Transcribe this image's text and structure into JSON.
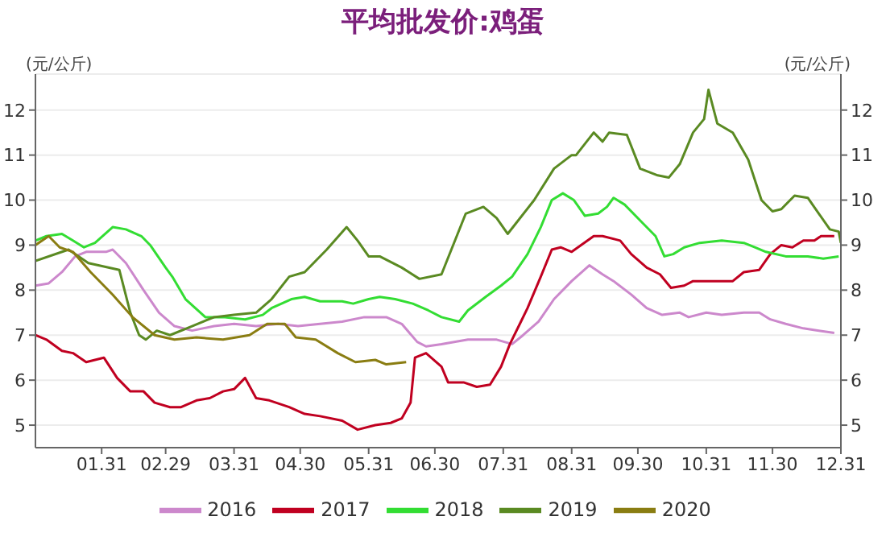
{
  "chart_data": {
    "type": "line",
    "title": "平均批发价:鸡蛋",
    "ylabel": "(元/公斤)",
    "y2label": "(元/公斤)",
    "xlim": [
      "--01-01",
      "--12-31"
    ],
    "xticks": [
      {
        "value": "--01-31",
        "label": "01.31"
      },
      {
        "value": "--02-29",
        "label": "02.29"
      },
      {
        "value": "--03-31",
        "label": "03.31"
      },
      {
        "value": "--04-30",
        "label": "04.30"
      },
      {
        "value": "--05-31",
        "label": "05.31"
      },
      {
        "value": "--06-30",
        "label": "06.30"
      },
      {
        "value": "--07-31",
        "label": "07.31"
      },
      {
        "value": "--08-31",
        "label": "08.31"
      },
      {
        "value": "--09-30",
        "label": "09.30"
      },
      {
        "value": "--10-31",
        "label": "10.31"
      },
      {
        "value": "--11-30",
        "label": "11.30"
      },
      {
        "value": "--12-31",
        "label": "12.31"
      }
    ],
    "ylim": [
      4.5,
      12.8
    ],
    "yticks": [
      5,
      6,
      7,
      8,
      9,
      10,
      11,
      12
    ],
    "y2lim": [
      4.5,
      12.8
    ],
    "y2ticks": [
      5,
      6,
      7,
      8,
      9,
      10,
      11,
      12
    ],
    "grid": "y",
    "legend": "bottom",
    "series": [
      {
        "name": "2016",
        "color": "#cc88cc",
        "x": [
          "--01-01",
          "--01-07",
          "--01-13",
          "--01-19",
          "--01-24",
          "--02-02",
          "--02-05",
          "--02-11",
          "--02-19",
          "--02-26",
          "--03-04",
          "--03-12",
          "--03-22",
          "--03-31",
          "--04-10",
          "--04-20",
          "--04-29",
          "--05-09",
          "--05-19",
          "--05-29",
          "--06-08",
          "--06-15",
          "--06-22",
          "--06-26",
          "--07-03",
          "--07-15",
          "--07-28",
          "--08-04",
          "--08-09",
          "--08-16",
          "--08-23",
          "--08-31",
          "--09-08",
          "--09-14",
          "--09-19",
          "--09-27",
          "--10-04",
          "--10-11",
          "--10-19",
          "--10-23",
          "--10-31",
          "--11-07",
          "--11-17",
          "--11-24",
          "--11-29",
          "--12-06",
          "--12-14",
          "--12-21",
          "--12-28"
        ],
        "values": [
          8.1,
          8.15,
          8.4,
          8.75,
          8.85,
          8.85,
          8.9,
          8.6,
          8.0,
          7.5,
          7.2,
          7.1,
          7.2,
          7.25,
          7.2,
          7.25,
          7.2,
          7.25,
          7.3,
          7.4,
          7.4,
          7.25,
          6.85,
          6.75,
          6.8,
          6.9,
          6.9,
          6.8,
          7.0,
          7.3,
          7.8,
          8.2,
          8.55,
          8.35,
          8.2,
          7.9,
          7.6,
          7.45,
          7.5,
          7.4,
          7.5,
          7.45,
          7.5,
          7.5,
          7.35,
          7.25,
          7.15,
          7.1,
          7.05
        ]
      },
      {
        "name": "2017",
        "color": "#c00020",
        "x": [
          "--01-01",
          "--01-06",
          "--01-13",
          "--01-18",
          "--01-24",
          "--02-01",
          "--02-07",
          "--02-13",
          "--02-19",
          "--02-24",
          "--03-02",
          "--03-07",
          "--03-14",
          "--03-20",
          "--03-26",
          "--03-31",
          "--04-05",
          "--04-10",
          "--04-16",
          "--04-25",
          "--05-02",
          "--05-09",
          "--05-19",
          "--05-26",
          "--06-03",
          "--06-10",
          "--06-15",
          "--06-19",
          "--06-21",
          "--06-26",
          "--07-03",
          "--07-06",
          "--07-13",
          "--07-19",
          "--07-25",
          "--07-30",
          "--08-03",
          "--08-08",
          "--08-11",
          "--08-17",
          "--08-22",
          "--08-26",
          "--08-31",
          "--09-10",
          "--09-14",
          "--09-22",
          "--09-27",
          "--10-04",
          "--10-10",
          "--10-15",
          "--10-21",
          "--10-25",
          "--11-02",
          "--11-12",
          "--11-17",
          "--11-24",
          "--11-29",
          "--12-04",
          "--12-09",
          "--12-14",
          "--12-19",
          "--12-22",
          "--12-28"
        ],
        "values": [
          7.0,
          6.9,
          6.65,
          6.6,
          6.4,
          6.5,
          6.05,
          5.75,
          5.75,
          5.5,
          5.4,
          5.4,
          5.55,
          5.6,
          5.75,
          5.8,
          6.05,
          5.6,
          5.55,
          5.4,
          5.25,
          5.2,
          5.1,
          4.9,
          5.0,
          5.05,
          5.15,
          5.5,
          6.5,
          6.6,
          6.3,
          5.95,
          5.95,
          5.85,
          5.9,
          6.3,
          6.8,
          7.3,
          7.6,
          8.3,
          8.9,
          8.95,
          8.85,
          9.2,
          9.2,
          9.1,
          8.8,
          8.5,
          8.35,
          8.05,
          8.1,
          8.2,
          8.2,
          8.2,
          8.4,
          8.45,
          8.8,
          9.0,
          8.95,
          9.1,
          9.1,
          9.2,
          9.2
        ]
      },
      {
        "name": "2018",
        "color": "#33dd33",
        "x": [
          "--01-01",
          "--01-06",
          "--01-13",
          "--01-18",
          "--01-23",
          "--01-28",
          "--02-05",
          "--02-11",
          "--02-18",
          "--02-22",
          "--02-29",
          "--03-03",
          "--03-09",
          "--03-18",
          "--03-26",
          "--04-05",
          "--04-13",
          "--04-17",
          "--04-26",
          "--05-02",
          "--05-09",
          "--05-19",
          "--05-24",
          "--05-31",
          "--06-05",
          "--06-12",
          "--06-20",
          "--06-27",
          "--07-03",
          "--07-11",
          "--07-15",
          "--07-23",
          "--07-30",
          "--08-04",
          "--08-11",
          "--08-17",
          "--08-22",
          "--08-27",
          "--09-01",
          "--09-06",
          "--09-12",
          "--09-16",
          "--09-19",
          "--09-24",
          "--10-01",
          "--10-08",
          "--10-12",
          "--10-16",
          "--10-21",
          "--10-28",
          "--11-07",
          "--11-17",
          "--11-22",
          "--11-27",
          "--12-06",
          "--12-16",
          "--12-23",
          "--12-30"
        ],
        "values": [
          9.1,
          9.2,
          9.25,
          9.1,
          8.95,
          9.05,
          9.4,
          9.35,
          9.2,
          9.0,
          8.5,
          8.3,
          7.8,
          7.4,
          7.4,
          7.35,
          7.45,
          7.6,
          7.8,
          7.85,
          7.75,
          7.75,
          7.7,
          7.8,
          7.85,
          7.8,
          7.7,
          7.55,
          7.4,
          7.3,
          7.55,
          7.85,
          8.1,
          8.3,
          8.8,
          9.4,
          10.0,
          10.15,
          10.0,
          9.65,
          9.7,
          9.85,
          10.05,
          9.9,
          9.55,
          9.2,
          8.75,
          8.8,
          8.95,
          9.05,
          9.1,
          9.05,
          8.95,
          8.85,
          8.75,
          8.75,
          8.7,
          8.75
        ]
      },
      {
        "name": "2019",
        "color": "#5a8a22",
        "x": [
          "--01-01",
          "--01-16",
          "--01-25",
          "--02-08",
          "--02-13",
          "--02-17",
          "--02-20",
          "--02-25",
          "--03-02",
          "--03-12",
          "--03-22",
          "--03-31",
          "--04-10",
          "--04-17",
          "--04-25",
          "--05-02",
          "--05-12",
          "--05-21",
          "--05-26",
          "--05-31",
          "--06-05",
          "--06-15",
          "--06-23",
          "--07-03",
          "--07-14",
          "--07-22",
          "--07-28",
          "--08-02",
          "--08-06",
          "--08-14",
          "--08-23",
          "--08-31",
          "--09-02",
          "--09-10",
          "--09-14",
          "--09-17",
          "--09-25",
          "--10-01",
          "--10-09",
          "--10-14",
          "--10-19",
          "--10-25",
          "--10-30",
          "--11-01",
          "--11-05",
          "--11-12",
          "--11-19",
          "--11-25",
          "--11-30",
          "--12-04",
          "--12-10",
          "--12-16",
          "--12-21",
          "--12-26",
          "--12-30",
          "--12-31"
        ],
        "values": [
          8.65,
          8.9,
          8.6,
          8.45,
          7.5,
          7.0,
          6.9,
          7.1,
          7.0,
          7.2,
          7.4,
          7.45,
          7.5,
          7.8,
          8.3,
          8.4,
          8.9,
          9.4,
          9.1,
          8.75,
          8.75,
          8.5,
          8.25,
          8.35,
          9.7,
          9.85,
          9.6,
          9.25,
          9.5,
          10.0,
          10.7,
          11.0,
          11.0,
          11.5,
          11.3,
          11.5,
          11.45,
          10.7,
          10.55,
          10.5,
          10.8,
          11.5,
          11.8,
          12.45,
          11.7,
          11.5,
          10.9,
          10.0,
          9.75,
          9.8,
          10.1,
          10.05,
          9.7,
          9.35,
          9.3,
          9.05
        ]
      },
      {
        "name": "2020",
        "color": "#8a7d12",
        "x": [
          "--01-01",
          "--01-07",
          "--01-12",
          "--01-18",
          "--01-26",
          "--02-05",
          "--02-14",
          "--02-24",
          "--03-04",
          "--03-14",
          "--03-26",
          "--04-07",
          "--04-15",
          "--04-23",
          "--04-28",
          "--05-07",
          "--05-17",
          "--05-25",
          "--06-03",
          "--06-08",
          "--06-17"
        ],
        "values": [
          9.0,
          9.2,
          8.95,
          8.85,
          8.4,
          7.9,
          7.4,
          7.0,
          6.9,
          6.95,
          6.9,
          7.0,
          7.25,
          7.25,
          6.95,
          6.9,
          6.6,
          6.4,
          6.45,
          6.35,
          6.4
        ]
      }
    ]
  }
}
